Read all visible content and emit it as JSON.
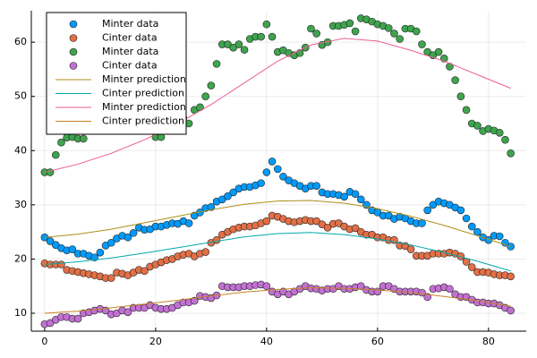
{
  "chart_data": {
    "type": "scatter",
    "x": [
      0,
      1,
      2,
      3,
      4,
      5,
      6,
      7,
      8,
      9,
      10,
      11,
      12,
      13,
      14,
      15,
      16,
      17,
      18,
      19,
      20,
      21,
      22,
      23,
      24,
      25,
      26,
      27,
      28,
      29,
      30,
      31,
      32,
      33,
      34,
      35,
      36,
      37,
      38,
      39,
      40,
      41,
      42,
      43,
      44,
      45,
      46,
      47,
      48,
      49,
      50,
      51,
      52,
      53,
      54,
      55,
      56,
      57,
      58,
      59,
      60,
      61,
      62,
      63,
      64,
      65,
      66,
      67,
      68,
      69,
      70,
      71,
      72,
      73,
      74,
      75,
      76,
      77,
      78,
      79,
      80,
      81,
      82,
      83,
      84
    ],
    "series": [
      {
        "name": "Minter data",
        "kind": "scatter",
        "color": "#009af9",
        "values": [
          24,
          23.3,
          22.6,
          22,
          21.6,
          21.8,
          21,
          21,
          20.6,
          20.3,
          21.2,
          22.5,
          23,
          23.8,
          24.3,
          24,
          24.8,
          25.8,
          25.4,
          25.5,
          26,
          26,
          26.3,
          26.6,
          26.5,
          27,
          26.6,
          28,
          28.6,
          29.4,
          29.6,
          30.6,
          31,
          31.6,
          32.3,
          33,
          33.3,
          33.3,
          33.6,
          34,
          36,
          38,
          36.6,
          35.2,
          34.5,
          34,
          33.5,
          33,
          33.5,
          33.5,
          32.3,
          32,
          32,
          31.8,
          31.5,
          32.4,
          32,
          31,
          30,
          29,
          28.6,
          28,
          28,
          27.4,
          27.8,
          27.5,
          27,
          26.6,
          26.6,
          29,
          30,
          30.6,
          30.3,
          30,
          29.5,
          29,
          27.5,
          26,
          25,
          24,
          23.5,
          24.3,
          24.2,
          23,
          22.3
        ]
      },
      {
        "name": "Cinter data",
        "kind": "scatter",
        "color": "#e26f46",
        "values": [
          19.2,
          19,
          19,
          19,
          18,
          17.8,
          17.6,
          17.4,
          17.2,
          17,
          16.8,
          16.5,
          16.5,
          17.5,
          17.3,
          17,
          17.5,
          18,
          17.8,
          18.6,
          19,
          19.4,
          19.8,
          20,
          20.5,
          20.8,
          21,
          20.5,
          21,
          21.3,
          23,
          23.5,
          24.5,
          25,
          25.5,
          25.8,
          26,
          26,
          26.2,
          26.6,
          27,
          28,
          27.8,
          27.4,
          27,
          26.8,
          27,
          27.2,
          27,
          27,
          26.4,
          25.8,
          26.5,
          26.6,
          26,
          25.5,
          25.7,
          25,
          24.5,
          24.5,
          24,
          24,
          23.5,
          23.5,
          22.5,
          22.4,
          21.8,
          20.6,
          20.6,
          20.6,
          21,
          21,
          21,
          21.2,
          21,
          20.5,
          19.5,
          18.5,
          17.6,
          17.6,
          17.5,
          17.2,
          17,
          17,
          16.8
        ]
      },
      {
        "name": "Minter data",
        "kind": "scatter",
        "color": "#3ea44e",
        "values": [
          36,
          36,
          39.2,
          41.5,
          42.4,
          42.5,
          42.2,
          42.2,
          43.8,
          45,
          46.5,
          46,
          45.5,
          47,
          46,
          45,
          44.6,
          44.6,
          46,
          44.2,
          42.5,
          42.5,
          44.5,
          46.6,
          46.6,
          46,
          45,
          47.5,
          48,
          50,
          52,
          56,
          59.6,
          59.6,
          59,
          59.6,
          58.6,
          60.6,
          61,
          61,
          63.3,
          61,
          58.2,
          58.5,
          58,
          57.6,
          58,
          59,
          62.5,
          61.6,
          59.5,
          60,
          63,
          63,
          63.2,
          63.5,
          62,
          64.4,
          64.2,
          63.8,
          63.3,
          63,
          62.6,
          61.6,
          60.6,
          62.5,
          62.5,
          62,
          59.6,
          58.2,
          57.6,
          58.2,
          57,
          55.5,
          53,
          50,
          47.5,
          45,
          44.6,
          43.6,
          44,
          43.7,
          43.3,
          42,
          39.5
        ]
      },
      {
        "name": "Cinter data",
        "kind": "scatter",
        "color": "#c271d2",
        "values": [
          8,
          8.2,
          8.8,
          9.3,
          9.3,
          9,
          9,
          10,
          10.2,
          10.5,
          10.8,
          10.5,
          9.8,
          10,
          10.5,
          10.2,
          11,
          11,
          11,
          11.5,
          11,
          10.8,
          10.8,
          11,
          11.5,
          12,
          12,
          12.3,
          13.2,
          13,
          12.8,
          13.3,
          15,
          14.8,
          14.8,
          14.8,
          15,
          15,
          15.2,
          15.3,
          15,
          14,
          13.5,
          14,
          13.5,
          14,
          14.5,
          15,
          14.6,
          14.5,
          14.2,
          14.5,
          14.5,
          15,
          14.5,
          14.5,
          14.8,
          15,
          14.3,
          14,
          14,
          15,
          15,
          14.5,
          14,
          14,
          14,
          14,
          13.8,
          13,
          14.5,
          14.6,
          14.8,
          14.5,
          13.5,
          13,
          13,
          12.5,
          12,
          12,
          11.8,
          11.8,
          11.5,
          11,
          10.5
        ]
      },
      {
        "name": "Minter prediction",
        "kind": "line",
        "color": "#ac8e18",
        "x": [
          0,
          6,
          12,
          18,
          24,
          30,
          36,
          42,
          48,
          54,
          60,
          66,
          72,
          78,
          84
        ],
        "values": [
          24,
          24.6,
          25.5,
          26.7,
          27.9,
          29.1,
          30.1,
          30.7,
          30.8,
          30.3,
          29.3,
          27.9,
          26.2,
          24.3,
          22.3
        ]
      },
      {
        "name": "Cinter prediction",
        "kind": "line",
        "color": "#00a9ad",
        "x": [
          0,
          6,
          12,
          18,
          24,
          30,
          36,
          42,
          48,
          54,
          60,
          66,
          72,
          78,
          84
        ],
        "values": [
          19,
          19.5,
          20.2,
          21.1,
          22.1,
          23.1,
          24.1,
          24.7,
          24.9,
          24.5,
          23.7,
          22.6,
          21.2,
          19.6,
          17.8
        ]
      },
      {
        "name": "Minter prediction",
        "kind": "line",
        "color": "#ed5e93",
        "x": [
          0,
          6,
          12,
          18,
          24,
          30,
          36,
          42,
          48,
          54,
          60,
          66,
          72,
          78,
          84
        ],
        "values": [
          36,
          37.5,
          39.5,
          42,
          45,
          48.5,
          52.5,
          56.5,
          59.5,
          60.7,
          60.2,
          58.5,
          56.5,
          54,
          51.5
        ]
      },
      {
        "name": "Cinter prediction",
        "kind": "line",
        "color": "#c68225",
        "x": [
          0,
          6,
          12,
          18,
          24,
          30,
          36,
          42,
          48,
          54,
          60,
          66,
          72,
          78,
          84
        ],
        "values": [
          10,
          10.4,
          11,
          11.7,
          12.4,
          13.2,
          13.9,
          14.4,
          14.7,
          14.6,
          14.3,
          13.8,
          13.1,
          12.3,
          11.3
        ]
      }
    ],
    "xlim": [
      -2.4,
      86.8
    ],
    "ylim": [
      6.7,
      65.8
    ],
    "xticks": [
      0,
      20,
      40,
      60,
      80
    ],
    "yticks": [
      10,
      20,
      30,
      40,
      50,
      60
    ],
    "grid": true,
    "legend": "top-left"
  }
}
